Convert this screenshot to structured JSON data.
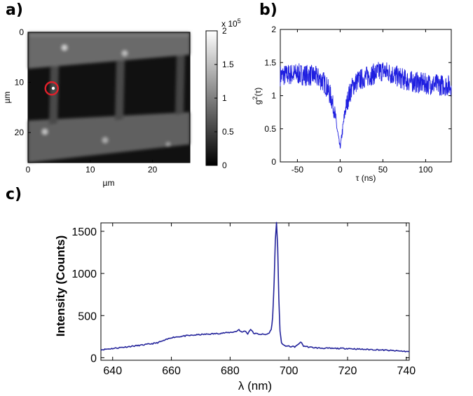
{
  "panels": {
    "a": "a)",
    "b": "b)",
    "c": "c)"
  },
  "chart_data": [
    {
      "type": "heatmap",
      "panel": "a)",
      "xlabel": "µm",
      "ylabel": "µm",
      "xlim": [
        0,
        26
      ],
      "ylim": [
        0,
        26
      ],
      "xticks": [
        "0",
        "10",
        "20"
      ],
      "yticks": [
        "0",
        "10",
        "20"
      ],
      "colorbar": {
        "range": [
          0,
          200000
        ],
        "ticks": [
          "0",
          "0.5",
          "1",
          "1.5",
          "2"
        ],
        "multiplier_base": "x 10",
        "multiplier_exp": "5"
      },
      "marker": {
        "x": 3.8,
        "y": 11.2,
        "color": "#e0202a"
      }
    },
    {
      "type": "line",
      "panel": "b)",
      "xlabel": "τ (ns)",
      "ylabel_base": "g",
      "ylabel_sup": "2",
      "ylabel_tail": "(τ)",
      "xlim": [
        -70,
        130
      ],
      "ylim": [
        0,
        2
      ],
      "xticks": [
        "-50",
        "0",
        "50",
        "100"
      ],
      "yticks": [
        "0",
        "0.5",
        "1",
        "1.5",
        "2"
      ],
      "color": "#1f1fe0",
      "x": [
        -70,
        -60,
        -50,
        -40,
        -30,
        -20,
        -15,
        -10,
        -6,
        -3,
        -1,
        0,
        1,
        3,
        6,
        10,
        15,
        20,
        30,
        40,
        50,
        60,
        70,
        80,
        90,
        100,
        110,
        120,
        130
      ],
      "y": [
        1.3,
        1.32,
        1.33,
        1.31,
        1.3,
        1.22,
        1.12,
        0.95,
        0.72,
        0.45,
        0.28,
        0.22,
        0.3,
        0.5,
        0.78,
        1.0,
        1.15,
        1.22,
        1.28,
        1.33,
        1.38,
        1.33,
        1.27,
        1.22,
        1.2,
        1.18,
        1.17,
        1.16,
        1.15
      ]
    },
    {
      "type": "line",
      "panel": "c)",
      "xlabel": "λ (nm)",
      "ylabel": "Intensity (Counts)",
      "xlim": [
        636,
        741
      ],
      "ylim": [
        -30,
        1600
      ],
      "xticks": [
        "640",
        "660",
        "680",
        "700",
        "720",
        "740"
      ],
      "yticks": [
        "0",
        "500",
        "1000",
        "1500"
      ],
      "color": "#22229a",
      "x": [
        636,
        640,
        645,
        650,
        655,
        658,
        660,
        665,
        670,
        675,
        680,
        682,
        683,
        684,
        685,
        686,
        687,
        688,
        690,
        692,
        693,
        694,
        694.5,
        695,
        695.4,
        695.8,
        696.2,
        696.6,
        697,
        697.5,
        698,
        699,
        700,
        702,
        703,
        704,
        705,
        707,
        710,
        715,
        720,
        725,
        730,
        735,
        740,
        741
      ],
      "y": [
        95,
        110,
        130,
        150,
        175,
        210,
        240,
        260,
        275,
        285,
        300,
        310,
        335,
        300,
        320,
        285,
        340,
        290,
        280,
        275,
        285,
        330,
        480,
        900,
        1400,
        1600,
        1300,
        700,
        320,
        180,
        150,
        140,
        135,
        130,
        150,
        190,
        140,
        125,
        115,
        110,
        110,
        100,
        95,
        85,
        75,
        70
      ]
    }
  ]
}
